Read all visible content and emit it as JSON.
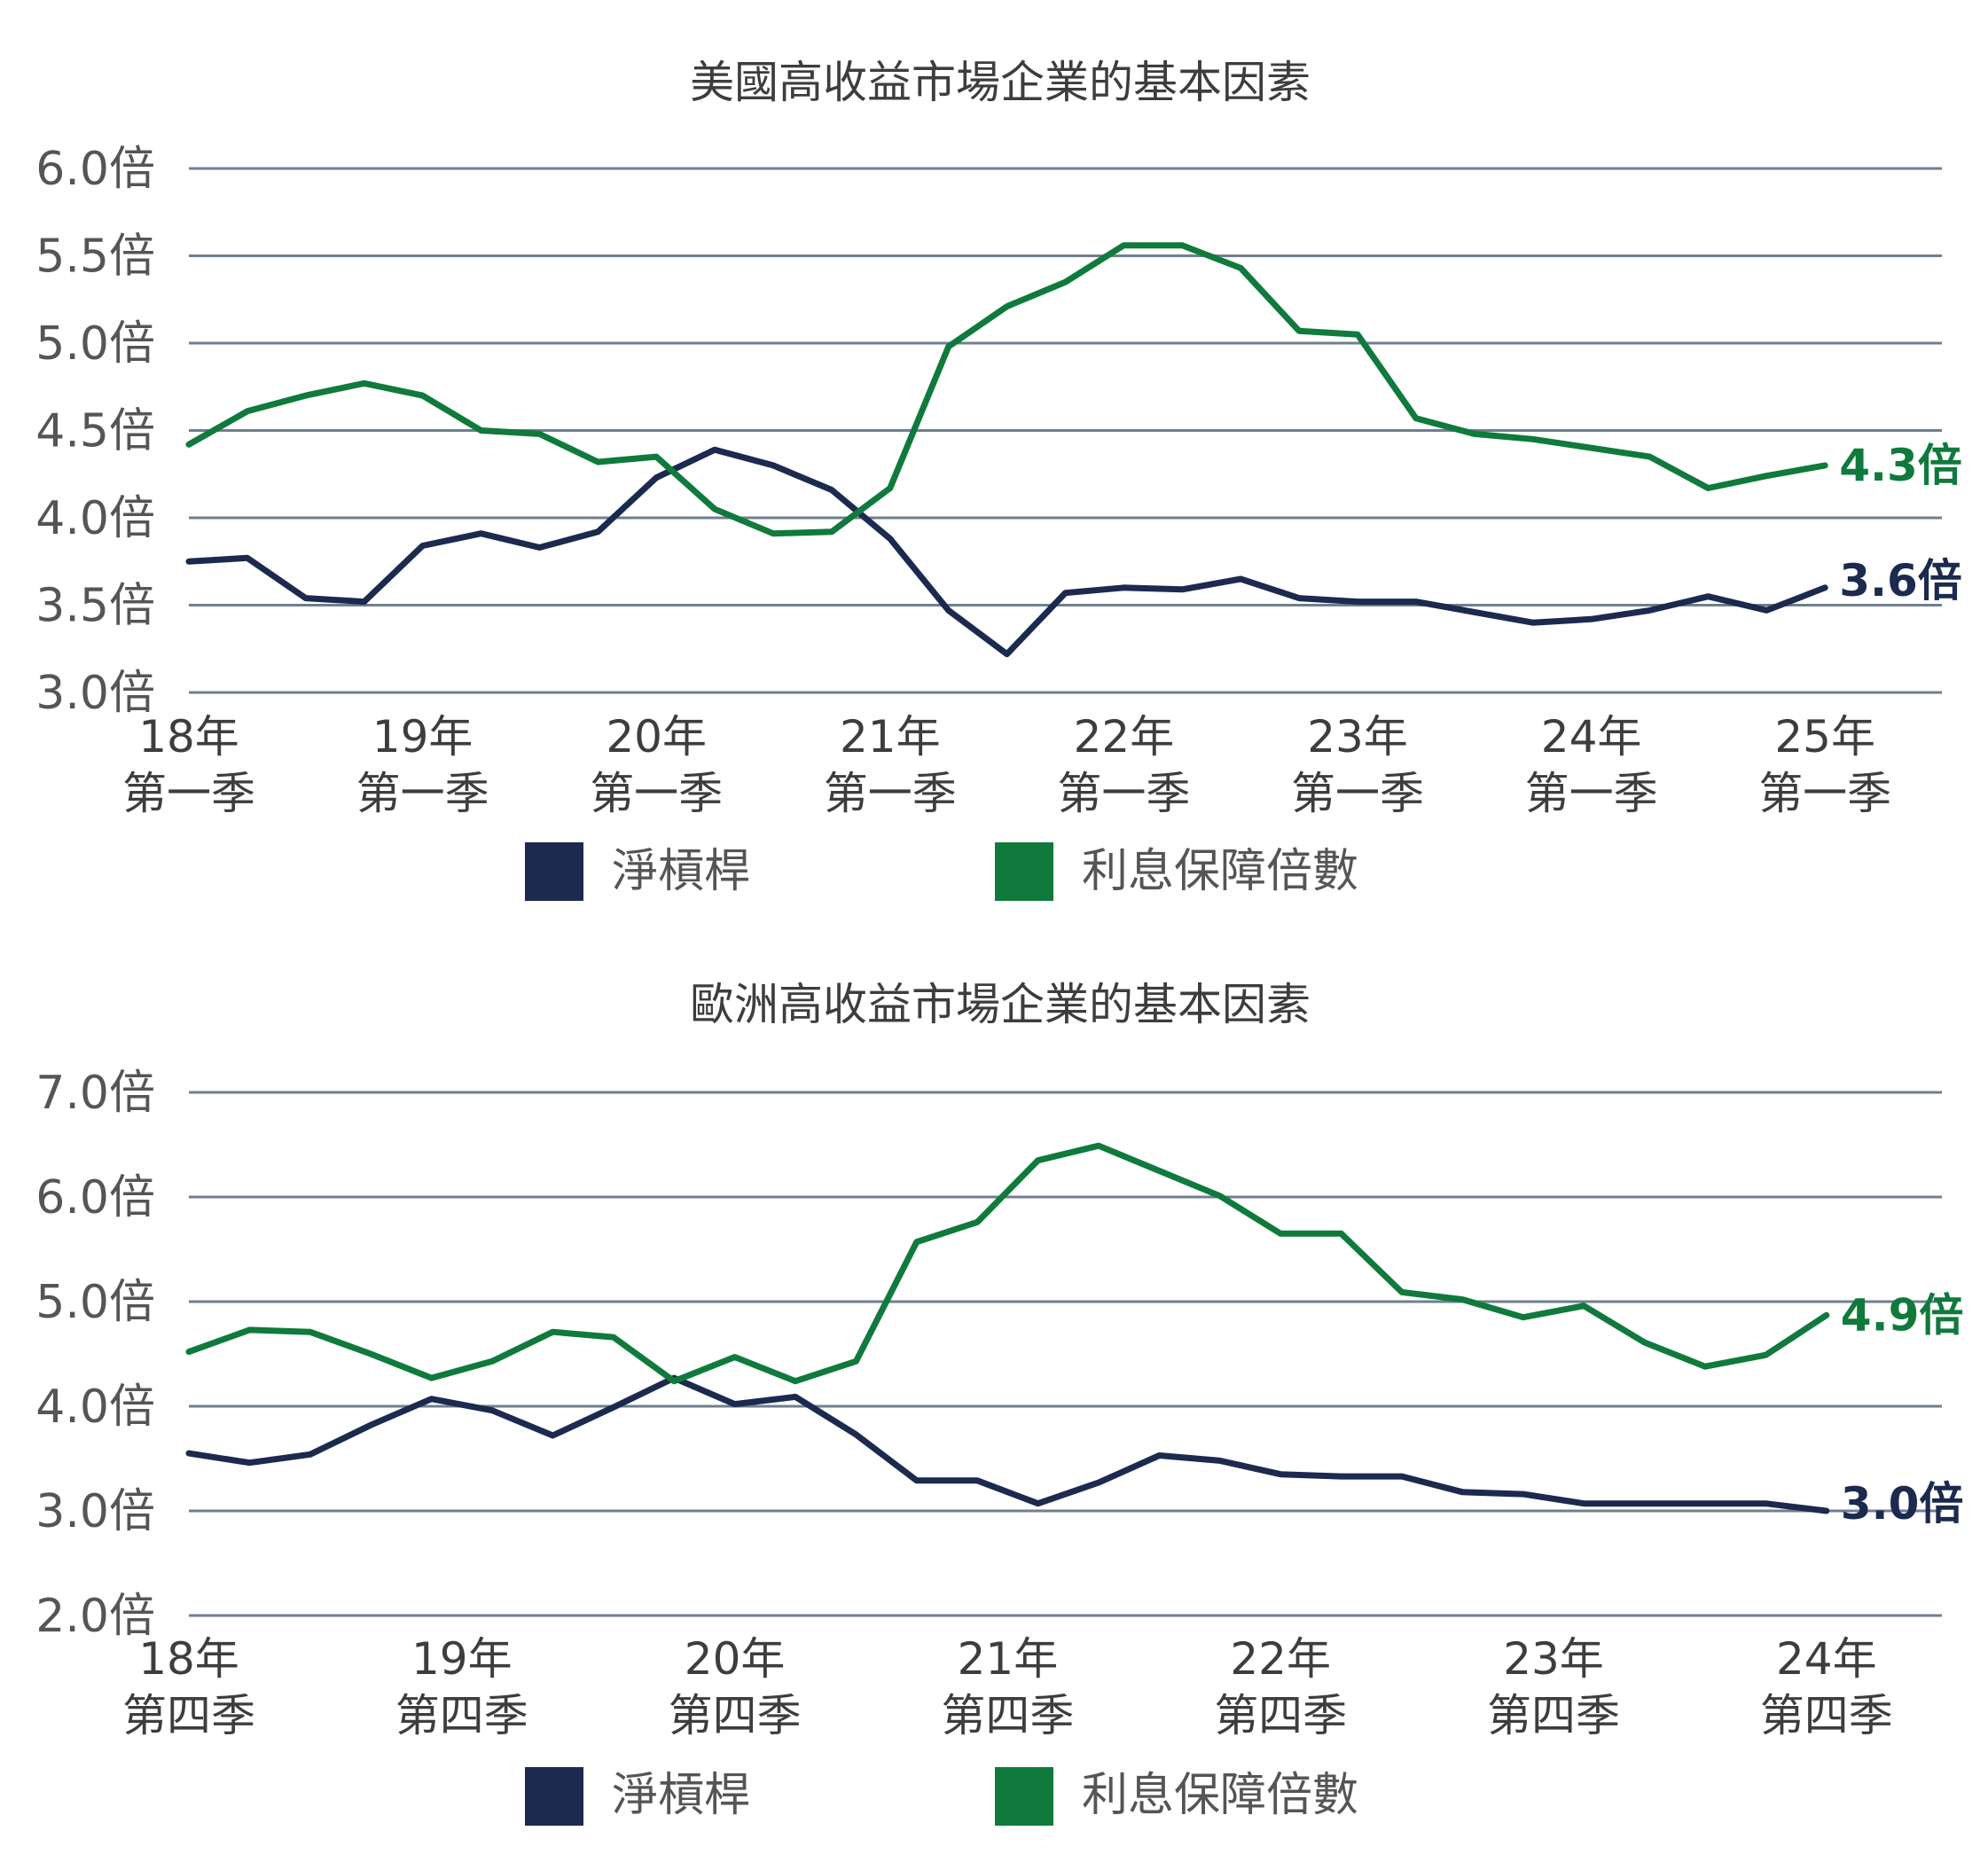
{
  "colors": {
    "net_leverage": "#1b2a4e",
    "interest_coverage": "#0f7a3c",
    "grid": "#6f7f8f"
  },
  "chart_data": [
    {
      "type": "line",
      "title": "美國高收益市場企業的基本因素",
      "ylim": [
        3.0,
        6.0
      ],
      "yticks": [
        3.0,
        3.5,
        4.0,
        4.5,
        5.0,
        5.5,
        6.0
      ],
      "ytick_labels": [
        "3.0倍",
        "3.5倍",
        "4.0倍",
        "4.5倍",
        "5.0倍",
        "5.5倍",
        "6.0倍"
      ],
      "x_labels": [
        {
          "index": 0,
          "year": "18年",
          "quarter": "第一季"
        },
        {
          "index": 4,
          "year": "19年",
          "quarter": "第一季"
        },
        {
          "index": 8,
          "year": "20年",
          "quarter": "第一季"
        },
        {
          "index": 12,
          "year": "21年",
          "quarter": "第一季"
        },
        {
          "index": 16,
          "year": "22年",
          "quarter": "第一季"
        },
        {
          "index": 20,
          "year": "23年",
          "quarter": "第一季"
        },
        {
          "index": 24,
          "year": "24年",
          "quarter": "第一季"
        },
        {
          "index": 28,
          "year": "25年",
          "quarter": "第一季"
        }
      ],
      "grid": true,
      "legend_position": "bottom",
      "series": [
        {
          "name": "淨槓桿",
          "color_key": "net_leverage",
          "end_label": "3.6倍",
          "values": [
            3.75,
            3.77,
            3.54,
            3.52,
            3.84,
            3.91,
            3.83,
            3.92,
            4.23,
            4.39,
            4.3,
            4.16,
            3.88,
            3.47,
            3.22,
            3.57,
            3.6,
            3.59,
            3.65,
            3.54,
            3.52,
            3.52,
            3.46,
            3.4,
            3.42,
            3.47,
            3.55,
            3.47,
            3.6
          ]
        },
        {
          "name": "利息保障倍數",
          "color_key": "interest_coverage",
          "end_label": "4.3倍",
          "values": [
            4.42,
            4.61,
            4.7,
            4.77,
            4.7,
            4.5,
            4.48,
            4.32,
            4.35,
            4.05,
            3.91,
            3.92,
            4.17,
            4.98,
            5.21,
            5.35,
            5.56,
            5.56,
            5.43,
            5.07,
            5.05,
            4.57,
            4.48,
            4.45,
            4.4,
            4.35,
            4.17,
            4.24,
            4.3
          ]
        }
      ]
    },
    {
      "type": "line",
      "title": "歐洲高收益市場企業的基本因素",
      "ylim": [
        2.0,
        7.0
      ],
      "yticks": [
        2.0,
        3.0,
        4.0,
        5.0,
        6.0,
        7.0
      ],
      "ytick_labels": [
        "2.0倍",
        "3.0倍",
        "4.0倍",
        "5.0倍",
        "6.0倍",
        "7.0倍"
      ],
      "x_labels": [
        {
          "index": 0,
          "year": "18年",
          "quarter": "第四季"
        },
        {
          "index": 4.5,
          "year": "19年",
          "quarter": "第四季"
        },
        {
          "index": 9,
          "year": "20年",
          "quarter": "第四季"
        },
        {
          "index": 13.5,
          "year": "21年",
          "quarter": "第四季"
        },
        {
          "index": 18,
          "year": "22年",
          "quarter": "第四季"
        },
        {
          "index": 22.5,
          "year": "23年",
          "quarter": "第四季"
        },
        {
          "index": 27,
          "year": "24年",
          "quarter": "第四季"
        }
      ],
      "grid": true,
      "legend_position": "bottom",
      "series": [
        {
          "name": "淨槓桿",
          "color_key": "net_leverage",
          "end_label": "3.0倍",
          "values": [
            3.55,
            3.46,
            3.54,
            3.82,
            4.07,
            3.96,
            3.72,
            3.99,
            4.27,
            4.02,
            4.09,
            3.73,
            3.29,
            3.29,
            3.07,
            3.27,
            3.53,
            3.48,
            3.35,
            3.33,
            3.33,
            3.18,
            3.16,
            3.07,
            3.07,
            3.07,
            3.07,
            3.0
          ]
        },
        {
          "name": "利息保障倍數",
          "color_key": "interest_coverage",
          "end_label": "4.9倍",
          "values": [
            4.52,
            4.73,
            4.71,
            4.5,
            4.27,
            4.43,
            4.71,
            4.66,
            4.24,
            4.47,
            4.24,
            4.43,
            5.57,
            5.76,
            6.35,
            6.49,
            6.25,
            6.01,
            5.65,
            5.65,
            5.09,
            5.02,
            4.85,
            4.96,
            4.61,
            4.38,
            4.49,
            4.87
          ]
        }
      ]
    }
  ]
}
